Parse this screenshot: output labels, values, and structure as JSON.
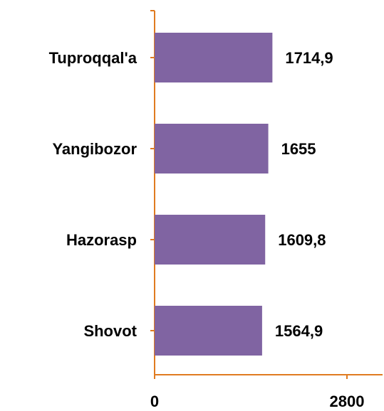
{
  "chart_data": {
    "type": "hbar",
    "categories": [
      "Tuproqqal'a",
      "Yangibozor",
      "Hazorasp",
      "Shovot"
    ],
    "values": [
      1714.9,
      1655,
      1609.8,
      1564.9
    ],
    "value_labels": [
      "1714,9",
      "1655",
      "1609,8",
      "1564,9"
    ],
    "color": "#8064a2",
    "axis_color": "#e07b20",
    "xlim": [
      0,
      2800
    ],
    "xticks": [
      0,
      2800
    ]
  }
}
